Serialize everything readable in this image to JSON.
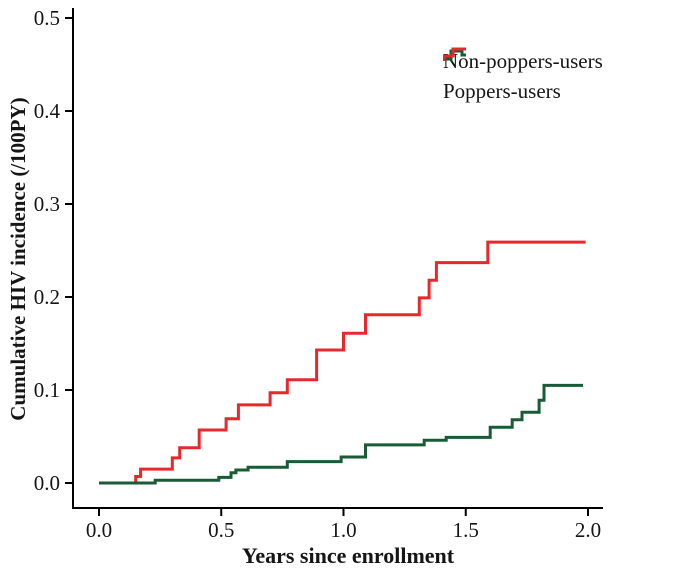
{
  "figure": {
    "background": "#ffffff",
    "axis_color": "#000000",
    "text_color": "#151515"
  },
  "chart_data": {
    "type": "line",
    "subtype": "step-post-cumulative-incidence",
    "title": "",
    "xlabel": "Years since enrollment",
    "ylabel": "Cumulative  HIV incidence (/100PY)",
    "xlim": [
      0,
      2.05
    ],
    "ylim": [
      0,
      0.5
    ],
    "grid": false,
    "legend_position": "top-right",
    "x_ticks": {
      "values": [
        0.0,
        0.5,
        1.0,
        1.5,
        2.0
      ],
      "labels": [
        "0.0",
        "0.5",
        "1.0",
        "1.5",
        "2.0"
      ]
    },
    "y_ticks": {
      "values": [
        0.0,
        0.1,
        0.2,
        0.3,
        0.4,
        0.5
      ],
      "labels": [
        "0.0",
        "0.1",
        "0.2",
        "0.3",
        "0.4",
        "0.5"
      ]
    },
    "series": [
      {
        "name": "Poppers-users",
        "color": "#e8282c",
        "step": "post",
        "points": [
          [
            0.0,
            0.0
          ],
          [
            0.15,
            0.007
          ],
          [
            0.17,
            0.015
          ],
          [
            0.3,
            0.027
          ],
          [
            0.33,
            0.038
          ],
          [
            0.41,
            0.057
          ],
          [
            0.52,
            0.069
          ],
          [
            0.57,
            0.084
          ],
          [
            0.7,
            0.097
          ],
          [
            0.77,
            0.111
          ],
          [
            0.89,
            0.143
          ],
          [
            1.0,
            0.161
          ],
          [
            1.09,
            0.181
          ],
          [
            1.31,
            0.199
          ],
          [
            1.35,
            0.218
          ],
          [
            1.38,
            0.237
          ],
          [
            1.59,
            0.259
          ],
          [
            1.99,
            0.259
          ]
        ]
      },
      {
        "name": "Non-poppers-users",
        "color": "#185c35",
        "step": "post",
        "points": [
          [
            0.0,
            0.0
          ],
          [
            0.23,
            0.003
          ],
          [
            0.49,
            0.006
          ],
          [
            0.54,
            0.011
          ],
          [
            0.56,
            0.014
          ],
          [
            0.61,
            0.017
          ],
          [
            0.77,
            0.023
          ],
          [
            0.99,
            0.028
          ],
          [
            1.09,
            0.041
          ],
          [
            1.33,
            0.046
          ],
          [
            1.42,
            0.049
          ],
          [
            1.6,
            0.06
          ],
          [
            1.69,
            0.068
          ],
          [
            1.73,
            0.076
          ],
          [
            1.8,
            0.089
          ],
          [
            1.82,
            0.105
          ],
          [
            1.98,
            0.105
          ]
        ]
      }
    ]
  },
  "legend": {
    "items": [
      {
        "label": "Non-poppers-users",
        "color": "#185c35"
      },
      {
        "label": "Poppers-users",
        "color": "#e8282c"
      }
    ]
  }
}
